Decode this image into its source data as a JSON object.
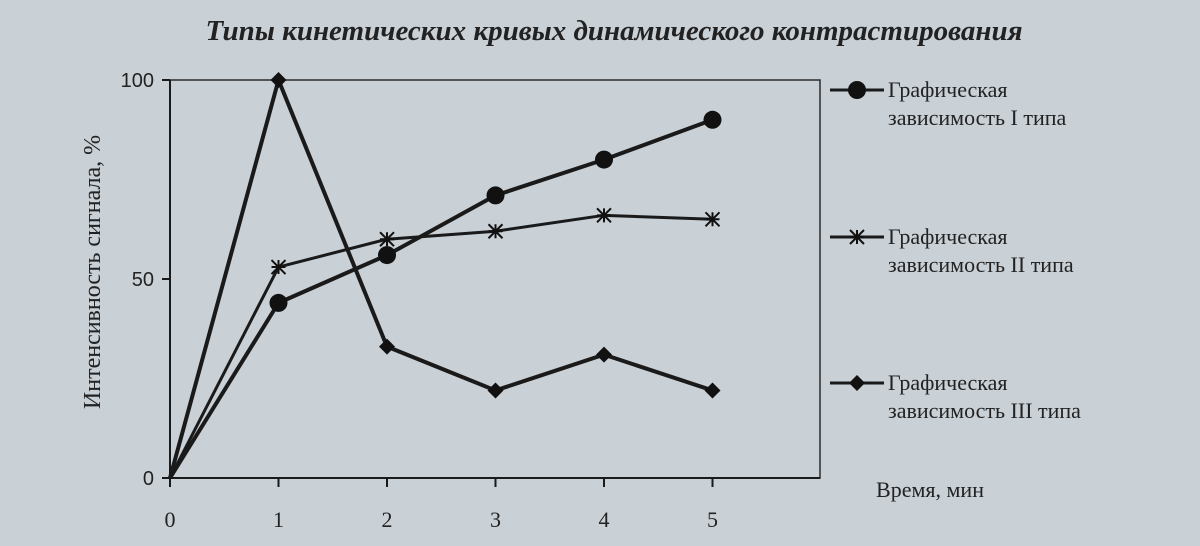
{
  "chart_data": {
    "type": "line",
    "title": "Типы кинетических кривых динамического контрастирования",
    "xlabel": "Время, мин",
    "ylabel": "Интенсивность сигнала, %",
    "ylim": [
      0,
      100
    ],
    "y_ticks": [
      "0",
      "50",
      "100"
    ],
    "x_ticks": [
      "0",
      "1",
      "2",
      "3",
      "4",
      "5"
    ],
    "legend_position": "right",
    "grid": false,
    "series": [
      {
        "name_lines": [
          "Графическая",
          "зависимость I типа"
        ],
        "marker": "circle",
        "x": [
          0,
          1,
          2,
          3,
          4,
          5
        ],
        "y": [
          0,
          44,
          56,
          71,
          80,
          90
        ]
      },
      {
        "name_lines": [
          "Графическая",
          "зависимость II типа"
        ],
        "marker": "star",
        "x": [
          0,
          1,
          2,
          3,
          4,
          5
        ],
        "y": [
          0,
          53,
          60,
          62,
          66,
          65
        ]
      },
      {
        "name_lines": [
          "Графическая",
          "зависимость III типа"
        ],
        "marker": "diamond",
        "x": [
          0,
          1,
          2,
          3,
          4,
          5
        ],
        "y": [
          0,
          100,
          33,
          22,
          31,
          22
        ]
      }
    ]
  }
}
